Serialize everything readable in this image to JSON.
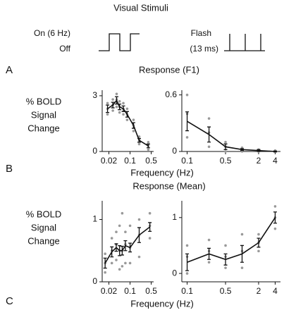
{
  "figure": {
    "title": "Visual Stimuli",
    "on_label": "On (6 Hz)",
    "off_label": "Off",
    "flash_label": "Flash",
    "flash_duration": "(13 ms)",
    "panels": [
      "A",
      "B",
      "C"
    ],
    "rows": [
      {
        "title": "Response (F1)",
        "xlabel": "Frequency (Hz)"
      },
      {
        "title": "Response (Mean)",
        "xlabel": "Frequency (Hz)"
      }
    ]
  },
  "chart_data": [
    {
      "type": "line",
      "ylabel": [
        "% BOLD",
        "Signal",
        "Change"
      ],
      "log_x": true,
      "color": "#111111",
      "dot_color": "#999999",
      "x": [
        0.018,
        0.027,
        0.036,
        0.045,
        0.06,
        0.08,
        0.13,
        0.2,
        0.4
      ],
      "values": [
        2.3,
        2.5,
        2.75,
        2.4,
        2.3,
        2.0,
        1.4,
        0.6,
        0.3
      ],
      "errors": [
        0.2,
        0.15,
        0.2,
        0.15,
        0.15,
        0.15,
        0.15,
        0.1,
        0.1
      ],
      "points_x": [
        0.018,
        0.018,
        0.018,
        0.027,
        0.027,
        0.027,
        0.036,
        0.036,
        0.036,
        0.045,
        0.045,
        0.045,
        0.06,
        0.06,
        0.06,
        0.08,
        0.08,
        0.08,
        0.13,
        0.13,
        0.13,
        0.2,
        0.2,
        0.2,
        0.4,
        0.4,
        0.4
      ],
      "points_y": [
        2.0,
        2.3,
        2.6,
        2.2,
        2.5,
        2.8,
        2.4,
        2.8,
        3.1,
        2.1,
        2.4,
        2.7,
        2.0,
        2.3,
        2.6,
        1.7,
        2.0,
        2.3,
        1.1,
        1.4,
        1.7,
        0.4,
        0.6,
        0.8,
        0.1,
        0.3,
        0.5
      ],
      "xlim": [
        0.012,
        0.6
      ],
      "xticks": [
        0.02,
        0.1,
        0.5
      ],
      "ylim": [
        0,
        3.3
      ],
      "yticks": [
        0,
        3
      ]
    },
    {
      "type": "line",
      "log_x": true,
      "color": "#111111",
      "dot_color": "#999999",
      "x": [
        0.1,
        0.25,
        0.5,
        1,
        2,
        4
      ],
      "values": [
        0.32,
        0.18,
        0.05,
        0.02,
        0.01,
        0
      ],
      "errors": [
        0.1,
        0.08,
        0.03,
        0.01,
        0.01,
        0.005
      ],
      "points_x": [
        0.1,
        0.1,
        0.1,
        0.25,
        0.25,
        0.25,
        0.5,
        0.5,
        0.5,
        1,
        1,
        1,
        2,
        2,
        2,
        4,
        4,
        4
      ],
      "points_y": [
        0.15,
        0.4,
        0.6,
        0.05,
        0.2,
        0.35,
        0,
        0.05,
        0.1,
        0,
        0.02,
        0.04,
        0,
        0.01,
        0.02,
        0,
        0,
        0.01
      ],
      "xlim": [
        0.08,
        5
      ],
      "xticks": [
        0.1,
        0.5,
        2,
        4
      ],
      "ylim": [
        0,
        0.65
      ],
      "yticks": [
        0,
        0.6
      ]
    },
    {
      "type": "line",
      "ylabel": [
        "% BOLD",
        "Signal",
        "Change"
      ],
      "log_x": true,
      "color": "#111111",
      "dot_color": "#999999",
      "x": [
        0.015,
        0.025,
        0.035,
        0.045,
        0.055,
        0.07,
        0.1,
        0.2,
        0.45
      ],
      "values": [
        0.3,
        0.48,
        0.55,
        0.5,
        0.5,
        0.58,
        0.55,
        0.75,
        0.88
      ],
      "errors": [
        0.08,
        0.08,
        0.06,
        0.08,
        0.07,
        0.08,
        0.07,
        0.12,
        0.07
      ],
      "points_x": [
        0.015,
        0.015,
        0.015,
        0.025,
        0.025,
        0.025,
        0.035,
        0.035,
        0.035,
        0.045,
        0.045,
        0.045,
        0.055,
        0.055,
        0.055,
        0.07,
        0.07,
        0.07,
        0.1,
        0.1,
        0.1,
        0.2,
        0.2,
        0.2,
        0.45,
        0.45,
        0.45
      ],
      "points_y": [
        0.15,
        0.3,
        0.45,
        0.3,
        0.5,
        0.7,
        0.35,
        0.6,
        0.8,
        0.2,
        0.5,
        0.9,
        0.25,
        0.5,
        1.1,
        0.3,
        0.6,
        0.8,
        0.3,
        0.55,
        0.9,
        0.4,
        0.75,
        1.0,
        0.7,
        0.9,
        1.1
      ],
      "xlim": [
        0.012,
        0.6
      ],
      "xticks": [
        0.02,
        0.1,
        0.5
      ],
      "ylim": [
        0,
        1.3
      ],
      "yticks": [
        0,
        1
      ]
    },
    {
      "type": "line",
      "log_x": true,
      "color": "#111111",
      "dot_color": "#999999",
      "x": [
        0.1,
        0.25,
        0.5,
        1,
        2,
        4
      ],
      "values": [
        0.2,
        0.35,
        0.25,
        0.35,
        0.55,
        1.0
      ],
      "errors": [
        0.15,
        0.1,
        0.1,
        0.15,
        0.08,
        0.1
      ],
      "points_x": [
        0.1,
        0.1,
        0.1,
        0.25,
        0.25,
        0.25,
        0.5,
        0.5,
        0.5,
        1,
        1,
        1,
        2,
        2,
        2,
        4,
        4,
        4
      ],
      "points_y": [
        0,
        0.3,
        0.5,
        0.2,
        0.4,
        0.6,
        0.1,
        0.3,
        0.5,
        0.1,
        0.4,
        0.7,
        0.4,
        0.55,
        0.7,
        0.8,
        1.0,
        1.2
      ],
      "xlim": [
        0.08,
        5
      ],
      "xticks": [
        0.1,
        0.5,
        2,
        4
      ],
      "ylim": [
        -0.15,
        1.3
      ],
      "yticks": [
        0,
        1
      ]
    }
  ]
}
